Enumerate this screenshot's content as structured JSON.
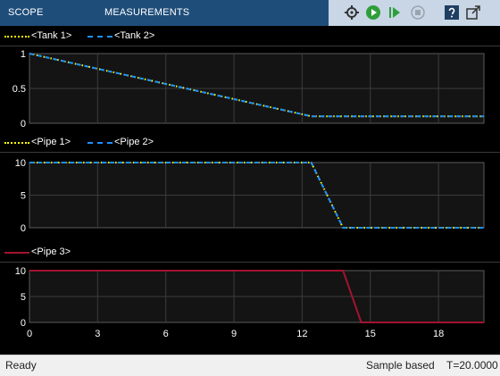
{
  "toolbar": {
    "tabs": [
      "SCOPE",
      "MEASUREMENTS"
    ],
    "tools": [
      "settings-icon",
      "run-icon",
      "step-forward-icon",
      "stop-icon",
      "help-icon",
      "undock-icon"
    ]
  },
  "colors": {
    "yellow_dotted": "#ffff00",
    "blue_dashed": "#1e90ff",
    "red": "#a2142f",
    "plot_bg": "#141414",
    "grid": "#3c3c3c",
    "axis_text": "#ffffff"
  },
  "chart_data": [
    {
      "type": "line",
      "legend": [
        "<Tank 1>",
        "<Tank 2>"
      ],
      "xlim": [
        0,
        20
      ],
      "ylim": [
        0,
        1
      ],
      "yticks": [
        0,
        0.5,
        1
      ],
      "yticklabels": [
        "0",
        "0.5",
        "1"
      ],
      "series": [
        {
          "name": "<Tank 1>",
          "style": "dotted",
          "color": "#ffff00",
          "x": [
            0,
            12.4,
            20
          ],
          "y": [
            1,
            0.1,
            0.1
          ]
        },
        {
          "name": "<Tank 2>",
          "style": "dashed",
          "color": "#1e90ff",
          "x": [
            0,
            12.4,
            20
          ],
          "y": [
            1,
            0.1,
            0.1
          ]
        }
      ]
    },
    {
      "type": "line",
      "legend": [
        "<Pipe 1>",
        "<Pipe 2>"
      ],
      "xlim": [
        0,
        20
      ],
      "ylim": [
        0,
        10
      ],
      "yticks": [
        0,
        5,
        10
      ],
      "yticklabels": [
        "0",
        "5",
        "10"
      ],
      "series": [
        {
          "name": "<Pipe 1>",
          "style": "dotted",
          "color": "#ffff00",
          "x": [
            0,
            12.4,
            13.8,
            20
          ],
          "y": [
            10,
            10,
            0,
            0
          ]
        },
        {
          "name": "<Pipe 2>",
          "style": "dashed",
          "color": "#1e90ff",
          "x": [
            0,
            12.4,
            13.8,
            20
          ],
          "y": [
            10,
            10,
            0,
            0
          ]
        }
      ]
    },
    {
      "type": "line",
      "legend": [
        "<Pipe 3>"
      ],
      "xlim": [
        0,
        20
      ],
      "ylim": [
        0,
        10
      ],
      "yticks": [
        0,
        5,
        10
      ],
      "yticklabels": [
        "0",
        "5",
        "10"
      ],
      "xticks": [
        0,
        3,
        6,
        9,
        12,
        15,
        18
      ],
      "xticklabels": [
        "0",
        "3",
        "6",
        "9",
        "12",
        "15",
        "18"
      ],
      "series": [
        {
          "name": "<Pipe 3>",
          "style": "solid",
          "color": "#a2142f",
          "x": [
            0,
            13.8,
            14.6,
            20
          ],
          "y": [
            10,
            10,
            0,
            0
          ]
        }
      ]
    }
  ],
  "status": {
    "left": "Ready",
    "mode": "Sample based",
    "time": "T=20.0000"
  }
}
